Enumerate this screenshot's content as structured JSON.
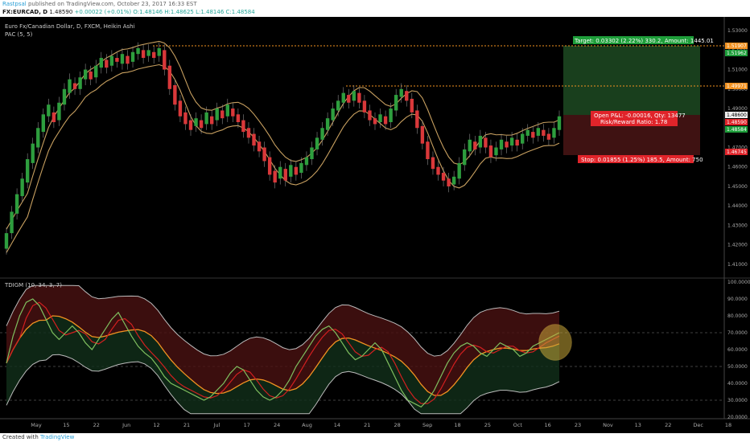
{
  "header": {
    "author": "Rastpsal",
    "published": "published on TradingView.com, October 23, 2017 16:33 EST"
  },
  "symbol_bar": {
    "symbol": "FX:EURCAD, D",
    "last": "1.48590",
    "change": "+0.00022 (+0.01%)",
    "ohlc": "O:1.48146  H:1.48625  L:1.48146  C:1.48584"
  },
  "main_pane": {
    "title": "Euro Fx/Canadian Dollar, D, FXCM, Heikin Ashi",
    "indicator": "PAC (5, 5)",
    "price_labels": [
      "1.53000",
      "1.52000",
      "1.51000",
      "1.50000",
      "1.49000",
      "1.48000",
      "1.47000",
      "1.46000",
      "1.45000",
      "1.44000",
      "1.43000",
      "1.42000",
      "1.41000"
    ],
    "tag_target": "1.51907",
    "tag_mid_upper": "1.51962",
    "tag_resistance": "1.49971",
    "tag_entry": "1.48600",
    "tag_entry2": "1.48590",
    "tag_last": "1.48584",
    "tag_stop": "1.46745",
    "target_label": "Target: 0.03302 (2.22%) 330.2, Amount: 1445.01",
    "pnl_line1": "Open P&L: -0.00016, Qty: 13477",
    "pnl_line2": "Risk/Reward Ratio: 1.78",
    "stop_label": "Stop: 0.01855 (1.25%) 185.5, Amount: 750"
  },
  "sub_pane": {
    "title": "TDIGM (10, 34, 3, 7)",
    "labels": [
      "100.0000",
      "90.0000",
      "80.0000",
      "70.0000",
      "60.0000",
      "50.0000",
      "40.0000",
      "30.0000",
      "20.0000"
    ]
  },
  "time_axis": [
    "May",
    "15",
    "22",
    "Jun",
    "12",
    "21",
    "Jul",
    "17",
    "24",
    "Aug",
    "14",
    "21",
    "28",
    "Sep",
    "18",
    "25",
    "Oct",
    "16",
    "23",
    "Nov",
    "13",
    "22",
    "Dec",
    "18"
  ],
  "footer": {
    "prefix": "Created with",
    "brand": "TradingView"
  },
  "colors": {
    "bull": "#2e9e3e",
    "bear": "#d9383a",
    "pac": "#c8a060",
    "target_zone": "#1d5a2a",
    "stop_zone": "#5a1a1a",
    "orange_line": "#f29221"
  },
  "chart_data": {
    "type": "candlestick",
    "ylim": [
      1.405,
      1.535
    ],
    "candles": [
      [
        1.418,
        1.426
      ],
      [
        1.426,
        1.437
      ],
      [
        1.436,
        1.446
      ],
      [
        1.445,
        1.454
      ],
      [
        1.452,
        1.464
      ],
      [
        1.462,
        1.472
      ],
      [
        1.47,
        1.48
      ],
      [
        1.478,
        1.487
      ],
      [
        1.486,
        1.492
      ],
      [
        1.488,
        1.483
      ],
      [
        1.484,
        1.493
      ],
      [
        1.492,
        1.5
      ],
      [
        1.498,
        1.505
      ],
      [
        1.503,
        1.5
      ],
      [
        1.5,
        1.506
      ],
      [
        1.505,
        1.51
      ],
      [
        1.509,
        1.505
      ],
      [
        1.506,
        1.512
      ],
      [
        1.511,
        1.516
      ],
      [
        1.515,
        1.511
      ],
      [
        1.512,
        1.517
      ],
      [
        1.516,
        1.514
      ],
      [
        1.513,
        1.518
      ],
      [
        1.517,
        1.513
      ],
      [
        1.514,
        1.519
      ],
      [
        1.518,
        1.521
      ],
      [
        1.52,
        1.516
      ],
      [
        1.517,
        1.52
      ],
      [
        1.519,
        1.516
      ],
      [
        1.517,
        1.521
      ],
      [
        1.52,
        1.51
      ],
      [
        1.512,
        1.5
      ],
      [
        1.502,
        1.492
      ],
      [
        1.494,
        1.486
      ],
      [
        1.488,
        1.482
      ],
      [
        1.484,
        1.479
      ],
      [
        1.481,
        1.485
      ],
      [
        1.484,
        1.48
      ],
      [
        1.482,
        1.488
      ],
      [
        1.486,
        1.482
      ],
      [
        1.484,
        1.49
      ],
      [
        1.489,
        1.485
      ],
      [
        1.486,
        1.492
      ],
      [
        1.49,
        1.486
      ],
      [
        1.487,
        1.483
      ],
      [
        1.484,
        1.478
      ],
      [
        1.48,
        1.475
      ],
      [
        1.477,
        1.471
      ],
      [
        1.473,
        1.468
      ],
      [
        1.47,
        1.463
      ],
      [
        1.465,
        1.456
      ],
      [
        1.458,
        1.452
      ],
      [
        1.454,
        1.46
      ],
      [
        1.459,
        1.453
      ],
      [
        1.455,
        1.461
      ],
      [
        1.46,
        1.456
      ],
      [
        1.457,
        1.462
      ],
      [
        1.461,
        1.465
      ],
      [
        1.464,
        1.47
      ],
      [
        1.469,
        1.475
      ],
      [
        1.474,
        1.48
      ],
      [
        1.479,
        1.485
      ],
      [
        1.484,
        1.49
      ],
      [
        1.489,
        1.494
      ],
      [
        1.493,
        1.498
      ],
      [
        1.497,
        1.493
      ],
      [
        1.494,
        1.499
      ],
      [
        1.498,
        1.493
      ],
      [
        1.494,
        1.488
      ],
      [
        1.489,
        1.484
      ],
      [
        1.485,
        1.482
      ],
      [
        1.483,
        1.487
      ],
      [
        1.486,
        1.482
      ],
      [
        1.483,
        1.49
      ],
      [
        1.489,
        1.497
      ],
      [
        1.496,
        1.5
      ],
      [
        1.499,
        1.494
      ],
      [
        1.495,
        1.488
      ],
      [
        1.489,
        1.48
      ],
      [
        1.481,
        1.472
      ],
      [
        1.473,
        1.464
      ],
      [
        1.465,
        1.459
      ],
      [
        1.46,
        1.456
      ],
      [
        1.457,
        1.453
      ],
      [
        1.454,
        1.45
      ],
      [
        1.451,
        1.455
      ],
      [
        1.454,
        1.462
      ],
      [
        1.461,
        1.469
      ],
      [
        1.468,
        1.474
      ],
      [
        1.473,
        1.469
      ],
      [
        1.47,
        1.476
      ],
      [
        1.475,
        1.47
      ],
      [
        1.471,
        1.465
      ],
      [
        1.466,
        1.47
      ],
      [
        1.469,
        1.474
      ],
      [
        1.473,
        1.47
      ],
      [
        1.471,
        1.475
      ],
      [
        1.474,
        1.471
      ],
      [
        1.472,
        1.477
      ],
      [
        1.476,
        1.479
      ],
      [
        1.478,
        1.475
      ],
      [
        1.476,
        1.48
      ],
      [
        1.479,
        1.476
      ],
      [
        1.477,
        1.474
      ],
      [
        1.475,
        1.48
      ],
      [
        1.479,
        1.486
      ]
    ],
    "tdi_rsi": [
      52,
      68,
      80,
      88,
      90,
      86,
      78,
      70,
      66,
      70,
      74,
      70,
      64,
      60,
      66,
      72,
      78,
      82,
      75,
      68,
      62,
      58,
      55,
      50,
      44,
      40,
      38,
      36,
      34,
      32,
      30,
      32,
      36,
      40,
      46,
      50,
      48,
      42,
      36,
      32,
      30,
      32,
      36,
      42,
      50,
      56,
      62,
      68,
      72,
      74,
      70,
      64,
      58,
      54,
      56,
      60,
      64,
      60,
      52,
      44,
      36,
      30,
      28,
      26,
      30,
      36,
      44,
      52,
      58,
      62,
      64,
      62,
      58,
      56,
      60,
      64,
      62,
      60,
      56,
      58,
      62,
      64,
      66,
      68,
      70
    ]
  }
}
